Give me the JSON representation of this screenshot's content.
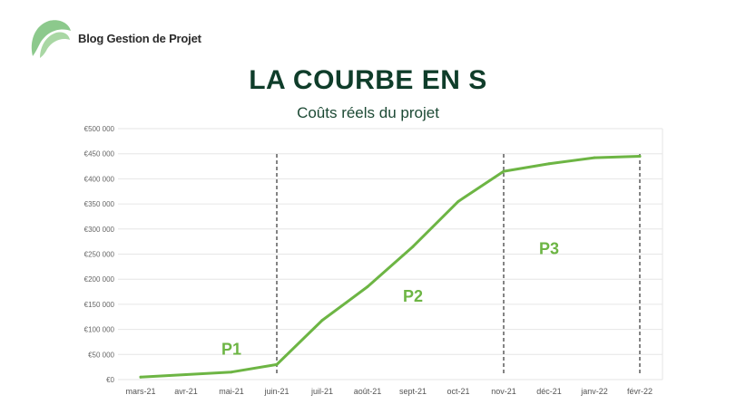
{
  "brand": {
    "name": "Blog Gestion de Projet",
    "logo_icon": "leaf-logo-icon",
    "logo_color": "#8cc98c"
  },
  "header": {
    "title": "LA COURBE EN S",
    "subtitle": "Coûts réels du projet"
  },
  "chart_data": {
    "type": "line",
    "title": "",
    "xlabel": "",
    "ylabel": "",
    "categories": [
      "mars-21",
      "avr-21",
      "mai-21",
      "juin-21",
      "juil-21",
      "août-21",
      "sept-21",
      "oct-21",
      "nov-21",
      "déc-21",
      "janv-22",
      "févr-22"
    ],
    "series": [
      {
        "values": [
          5000,
          10000,
          15000,
          30000,
          118000,
          185000,
          265000,
          355000,
          415000,
          430000,
          442000,
          445000
        ],
        "color": "#6db544"
      }
    ],
    "ylim": [
      0,
      500000
    ],
    "yticks": [
      0,
      50000,
      100000,
      150000,
      200000,
      250000,
      300000,
      350000,
      400000,
      450000,
      500000
    ],
    "ytick_labels": [
      "€0",
      "€50 000",
      "€100 000",
      "€150 000",
      "€200 000",
      "€250 000",
      "€300 000",
      "€350 000",
      "€400 000",
      "€450 000",
      "€500 000"
    ],
    "grid": true,
    "phase_dividers": [
      "juin-21",
      "nov-21",
      "févr-22"
    ],
    "phase_labels": [
      {
        "text": "P1",
        "x": "mai-21",
        "y": 50000
      },
      {
        "text": "P2",
        "x": "sept-21",
        "y": 155000
      },
      {
        "text": "P3",
        "x": "déc-21",
        "y": 250000
      }
    ],
    "phase_label_color": "#6db544",
    "divider_color": "#666666",
    "grid_color": "#e6e6e6"
  }
}
